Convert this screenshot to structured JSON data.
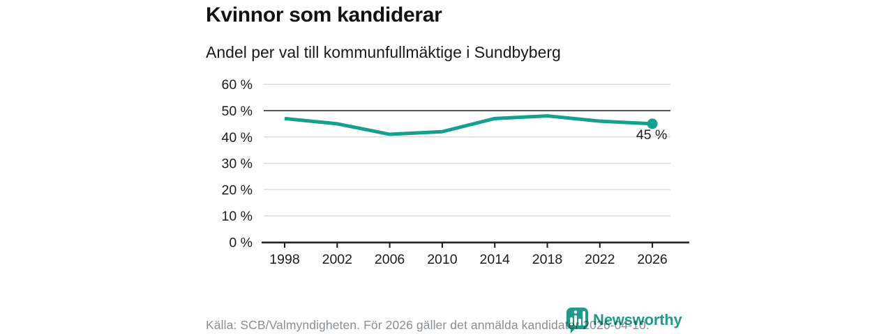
{
  "header": {
    "title": "Kvinnor som kandiderar",
    "subtitle": "Andel per val till kommunfullmäktige i Sundbyberg"
  },
  "chart_data": {
    "type": "line",
    "title": "Kvinnor som kandiderar",
    "subtitle": "Andel per val till kommunfullmäktige i Sundbyberg",
    "categories": [
      "1998",
      "2002",
      "2006",
      "2010",
      "2014",
      "2018",
      "2022",
      "2026"
    ],
    "values": [
      47,
      45,
      41,
      42,
      47,
      48,
      46,
      45
    ],
    "end_point_label": "45 %",
    "ylim": [
      0,
      60
    ],
    "yticks": [
      0,
      10,
      20,
      30,
      40,
      50,
      60
    ],
    "ytick_suffix": " %",
    "grid": "horizontal",
    "reference_line_y": 50,
    "legend": "none",
    "colors": {
      "line": "#14a090",
      "grid": "#dcdcdc",
      "reference": "#555555",
      "axis": "#1a1a1a",
      "tick_text": "#1c1c1c",
      "point_label": "#1a1a1a"
    }
  },
  "footer": {
    "source": "Källa: SCB/Valmyndigheten. För 2026 gäller det anmälda kandidater 2026-04-10."
  },
  "branding": {
    "logo_text": "Newsworthy",
    "logo_color": "#23998b",
    "logo_icon": "bar-chart-speech-bubble"
  }
}
